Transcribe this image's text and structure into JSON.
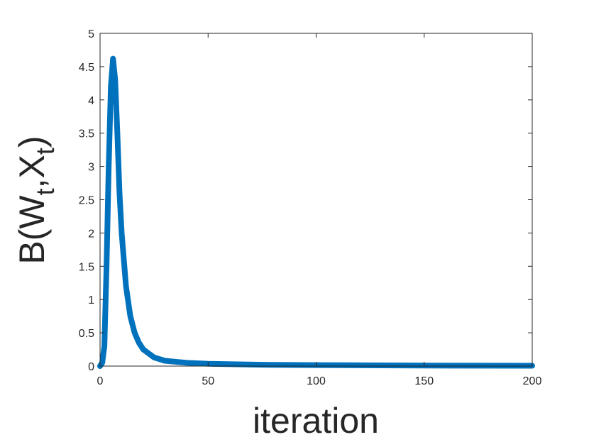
{
  "chart_data": {
    "type": "line",
    "xlabel": "iteration",
    "ylabel": [
      "B(W",
      "t",
      ",X",
      "t",
      ")"
    ],
    "x": [
      0,
      1,
      2,
      3,
      4,
      5,
      6,
      7,
      8,
      9,
      10,
      12,
      14,
      16,
      18,
      20,
      25,
      30,
      40,
      50,
      75,
      100,
      150,
      200
    ],
    "series": [
      {
        "color": "#0072bd",
        "values": [
          0,
          0.05,
          0.3,
          1.5,
          3.0,
          4.2,
          4.62,
          4.3,
          3.5,
          2.6,
          2.0,
          1.2,
          0.75,
          0.5,
          0.35,
          0.25,
          0.13,
          0.08,
          0.05,
          0.035,
          0.02,
          0.015,
          0.008,
          0.005
        ]
      }
    ],
    "xlim": [
      0,
      200
    ],
    "xticks": [
      0,
      50,
      100,
      150,
      200
    ],
    "ylim": [
      0,
      5
    ],
    "yticks": [
      0,
      0.5,
      1,
      1.5,
      2,
      2.5,
      3,
      3.5,
      4,
      4.5,
      5
    ]
  }
}
